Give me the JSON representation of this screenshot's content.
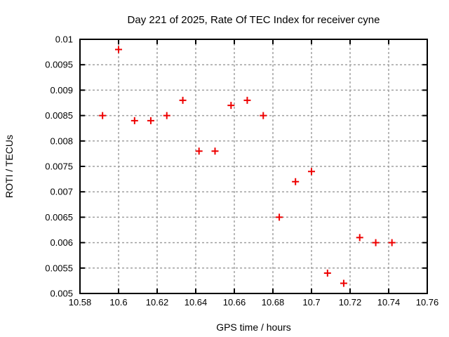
{
  "chart_data": {
    "type": "scatter",
    "title": "Day 221 of 2025, Rate Of TEC Index for receiver cyne",
    "xlabel": "GPS time / hours",
    "ylabel": "ROTI / TECUs",
    "xlim": [
      10.58,
      10.76
    ],
    "ylim": [
      0.005,
      0.01
    ],
    "grid": true,
    "legend": false,
    "x_ticks": [
      {
        "value": 10.58,
        "label": "10.58"
      },
      {
        "value": 10.6,
        "label": "10.6"
      },
      {
        "value": 10.62,
        "label": "10.62"
      },
      {
        "value": 10.64,
        "label": "10.64"
      },
      {
        "value": 10.66,
        "label": "10.66"
      },
      {
        "value": 10.68,
        "label": "10.68"
      },
      {
        "value": 10.7,
        "label": "10.7"
      },
      {
        "value": 10.72,
        "label": "10.72"
      },
      {
        "value": 10.74,
        "label": "10.74"
      },
      {
        "value": 10.76,
        "label": "10.76"
      }
    ],
    "y_ticks": [
      {
        "value": 0.005,
        "label": "0.005"
      },
      {
        "value": 0.0055,
        "label": "0.0055"
      },
      {
        "value": 0.006,
        "label": "0.006"
      },
      {
        "value": 0.0065,
        "label": "0.0065"
      },
      {
        "value": 0.007,
        "label": "0.007"
      },
      {
        "value": 0.0075,
        "label": "0.0075"
      },
      {
        "value": 0.008,
        "label": "0.008"
      },
      {
        "value": 0.0085,
        "label": "0.0085"
      },
      {
        "value": 0.009,
        "label": "0.009"
      },
      {
        "value": 0.0095,
        "label": "0.0095"
      },
      {
        "value": 0.01,
        "label": "0.01"
      }
    ],
    "series": [
      {
        "name": "roti",
        "marker": "plus",
        "x": [
          10.5917,
          10.6,
          10.6083,
          10.6167,
          10.625,
          10.6333,
          10.6417,
          10.65,
          10.6583,
          10.6667,
          10.675,
          10.6833,
          10.6917,
          10.7,
          10.7083,
          10.7167,
          10.725,
          10.7333,
          10.7417
        ],
        "y": [
          0.0085,
          0.0098,
          0.0084,
          0.0084,
          0.0085,
          0.0088,
          0.0078,
          0.0078,
          0.0087,
          0.0088,
          0.0085,
          0.0065,
          0.0072,
          0.0074,
          0.0054,
          0.0052,
          0.0061,
          0.006,
          0.006
        ]
      }
    ],
    "colors": {
      "marker": "#ee0000",
      "grid": "#a0a0a0",
      "axis": "#000000",
      "background": "#ffffff",
      "text": "#000000"
    }
  }
}
